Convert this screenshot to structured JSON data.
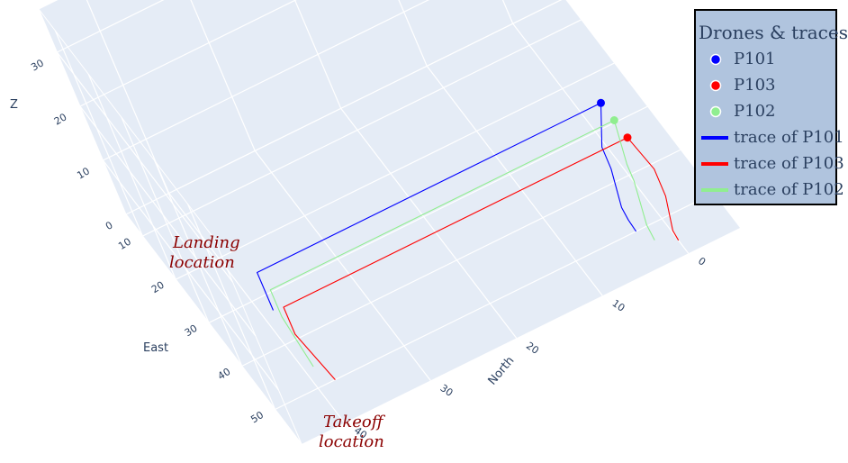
{
  "legend": {
    "title": "Drones & traces",
    "items": [
      {
        "kind": "marker",
        "label": "P101",
        "color": "#0000ff"
      },
      {
        "kind": "marker",
        "label": "P103",
        "color": "#ff0000"
      },
      {
        "kind": "marker",
        "label": "P102",
        "color": "#90ee90"
      },
      {
        "kind": "line",
        "label": "trace of P101",
        "color": "#0000ff"
      },
      {
        "kind": "line",
        "label": "trace of P103",
        "color": "#ff0000"
      },
      {
        "kind": "line",
        "label": "trace of P102",
        "color": "#90ee90"
      }
    ]
  },
  "annotations": {
    "landing": [
      "Landing",
      "location"
    ],
    "takeoff": [
      "Takeoff",
      "location"
    ]
  },
  "chart_data": {
    "type": "scatter3d",
    "axes": {
      "x": {
        "title": "East",
        "ticks": [
          10,
          20,
          30,
          40,
          50
        ],
        "range": [
          5,
          58
        ]
      },
      "y": {
        "title": "North",
        "ticks": [
          0,
          10,
          20,
          30,
          40
        ],
        "range": [
          -6,
          45
        ]
      },
      "z": {
        "title": "Z",
        "ticks": [
          0,
          10,
          20,
          30
        ],
        "range": [
          0,
          38
        ]
      }
    },
    "grid": true,
    "legend_position": "top-right",
    "series": [
      {
        "name": "trace of P101",
        "color": "#0000ff",
        "points": [
          {
            "x": 50,
            "y": 3,
            "z": 0
          },
          {
            "x": 48,
            "y": 3,
            "z": 0.5
          },
          {
            "x": 47,
            "y": 3,
            "z": 2
          },
          {
            "x": 44,
            "y": 2,
            "z": 6
          },
          {
            "x": 44,
            "y": 2,
            "z": 10
          },
          {
            "x": 42,
            "y": 0,
            "z": 15
          },
          {
            "x": 42,
            "y": 40,
            "z": 15
          },
          {
            "x": 42,
            "y": 40,
            "z": 8
          }
        ],
        "marker": {
          "x": 42,
          "y": 0,
          "z": 15
        }
      },
      {
        "name": "trace of P103",
        "color": "#ff0000",
        "points": [
          {
            "x": 55,
            "y": 0,
            "z": 0
          },
          {
            "x": 54,
            "y": 0,
            "z": 1
          },
          {
            "x": 52,
            "y": -1,
            "z": 5
          },
          {
            "x": 52,
            "y": -1,
            "z": 10
          },
          {
            "x": 50,
            "y": 0,
            "z": 15
          },
          {
            "x": 50,
            "y": 40,
            "z": 15
          },
          {
            "x": 50,
            "y": 40,
            "z": 10
          },
          {
            "x": 50,
            "y": 38,
            "z": 0
          }
        ],
        "marker": {
          "x": 50,
          "y": 0,
          "z": 15
        }
      },
      {
        "name": "trace of P102",
        "color": "#90ee90",
        "points": [
          {
            "x": 53,
            "y": 2,
            "z": 0
          },
          {
            "x": 52,
            "y": 2,
            "z": 2
          },
          {
            "x": 49,
            "y": 1,
            "z": 7
          },
          {
            "x": 49,
            "y": 1,
            "z": 10
          },
          {
            "x": 46,
            "y": 0,
            "z": 15
          },
          {
            "x": 46,
            "y": 40,
            "z": 15
          },
          {
            "x": 46,
            "y": 40,
            "z": 10
          },
          {
            "x": 46,
            "y": 39,
            "z": 0
          }
        ],
        "marker": {
          "x": 46,
          "y": 0,
          "z": 15
        }
      }
    ]
  }
}
